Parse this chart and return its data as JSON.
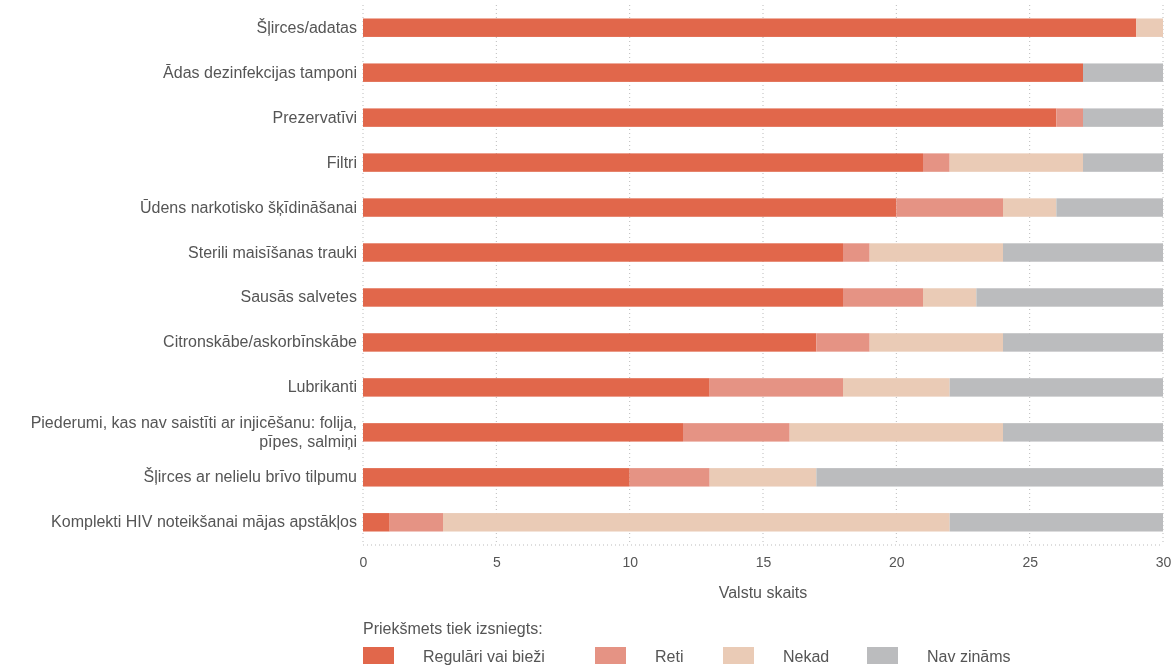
{
  "chart_data": {
    "type": "bar",
    "orientation": "horizontal",
    "stacked": true,
    "categories": [
      "Šļirces/adatas",
      "Ādas dezinfekcijas tamponi",
      "Prezervatīvi",
      "Filtri",
      "Ūdens narkotisko šķīdināšanai",
      "Sterili maisīšanas trauki",
      "Sausās salvetes",
      "Citronskābe/askorbīnskābe",
      "Lubrikanti",
      "Piederumi, kas nav saistīti ar injicēšanu: folija, pīpes, salmiņi",
      "Šļirces ar nelielu brīvo tilpumu",
      "Komplekti HIV noteikšanai mājas apstākļos"
    ],
    "series": [
      {
        "name": "Regulāri vai bieži",
        "color": "#e1674b",
        "values": [
          29,
          27,
          26,
          21,
          20,
          18,
          18,
          17,
          13,
          12,
          10,
          1
        ]
      },
      {
        "name": "Reti",
        "color": "#e59384",
        "values": [
          0,
          0,
          1,
          1,
          4,
          1,
          3,
          2,
          5,
          4,
          3,
          2
        ]
      },
      {
        "name": "Nekad",
        "color": "#eacbb6",
        "values": [
          1,
          0,
          0,
          5,
          2,
          5,
          2,
          5,
          4,
          8,
          4,
          19
        ]
      },
      {
        "name": "Nav zināms",
        "color": "#bbbcbe",
        "values": [
          0,
          3,
          3,
          3,
          4,
          6,
          7,
          6,
          8,
          6,
          13,
          8
        ]
      }
    ],
    "xlim": [
      0,
      30
    ],
    "xticks": [
      0,
      5,
      10,
      15,
      20,
      25,
      30
    ],
    "xlabel": "Valstu skaits",
    "legend_title": "Priekšmets tiek izsniegts:",
    "legend": "bottom",
    "grid": "x"
  }
}
